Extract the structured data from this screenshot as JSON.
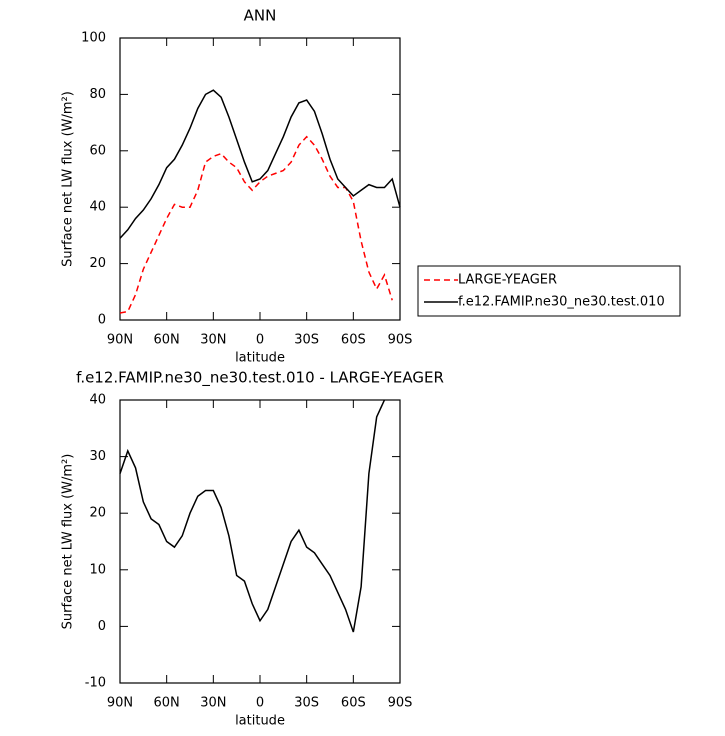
{
  "chart_data": [
    {
      "type": "line",
      "title": "ANN",
      "xlabel": "latitude",
      "ylabel": "Surface net LW flux (W/m²)",
      "x": [
        90,
        85,
        80,
        75,
        70,
        65,
        60,
        55,
        50,
        45,
        40,
        35,
        30,
        25,
        20,
        15,
        10,
        5,
        0,
        -5,
        -10,
        -15,
        -20,
        -25,
        -30,
        -35,
        -40,
        -45,
        -50,
        -55,
        -60,
        -65,
        -70,
        -75,
        -80,
        -85,
        -90
      ],
      "series": [
        {
          "name": "LARGE-YEAGER",
          "color": "#ff0000",
          "dash": true,
          "values": [
            2.5,
            3,
            9,
            18,
            24,
            30,
            36,
            41,
            40,
            40,
            46,
            56,
            58,
            59,
            56,
            54,
            49,
            46,
            49,
            51,
            52,
            53,
            56,
            62,
            65,
            62,
            57,
            51,
            47,
            47,
            42,
            28,
            17,
            11,
            16,
            7,
            null
          ]
        },
        {
          "name": "f.e12.FAMIP.ne30_ne30.test.010",
          "color": "#000000",
          "dash": false,
          "values": [
            29,
            32,
            36,
            39,
            43,
            48,
            54,
            57,
            62,
            68,
            75,
            80,
            81.5,
            79,
            72,
            64,
            56,
            49,
            50,
            53,
            59,
            65,
            72,
            77,
            78,
            74,
            66,
            57,
            50,
            47,
            44,
            46,
            48,
            47,
            47,
            50,
            40
          ]
        }
      ],
      "xlim": [
        90,
        -90
      ],
      "xticks": [
        {
          "value": 90,
          "label": "90N"
        },
        {
          "value": 60,
          "label": "60N"
        },
        {
          "value": 30,
          "label": "30N"
        },
        0,
        {
          "value": -30,
          "label": "30S"
        },
        {
          "value": -60,
          "label": "60S"
        },
        {
          "value": -90,
          "label": "90S"
        }
      ],
      "ylim": [
        0,
        100
      ],
      "yticks": [
        0,
        20,
        40,
        60,
        80,
        100
      ],
      "legend": "right"
    },
    {
      "type": "line",
      "title": "f.e12.FAMIP.ne30_ne30.test.010 - LARGE-YEAGER",
      "xlabel": "latitude",
      "ylabel": "Surface net LW flux (W/m²)",
      "x": [
        90,
        85,
        80,
        75,
        70,
        65,
        60,
        55,
        50,
        45,
        40,
        35,
        30,
        25,
        20,
        15,
        10,
        5,
        0,
        -5,
        -10,
        -15,
        -20,
        -25,
        -30,
        -35,
        -40,
        -45,
        -50,
        -55,
        -60,
        -65,
        -70,
        -75,
        -80,
        -85,
        -90
      ],
      "series": [
        {
          "color": "#000000",
          "dash": false,
          "values": [
            27,
            31,
            28,
            22,
            19,
            18,
            15,
            14,
            16,
            20,
            23,
            24,
            24,
            21,
            16,
            9,
            8,
            4,
            1,
            3,
            7,
            11,
            15,
            17,
            14,
            13,
            11,
            9,
            6,
            3,
            -1,
            7,
            27,
            37,
            40,
            null,
            null
          ]
        }
      ],
      "xlim": [
        90,
        -90
      ],
      "xticks": [
        {
          "value": 90,
          "label": "90N"
        },
        {
          "value": 60,
          "label": "60N"
        },
        {
          "value": 30,
          "label": "30N"
        },
        0,
        {
          "value": -30,
          "label": "30S"
        },
        {
          "value": -60,
          "label": "60S"
        },
        {
          "value": -90,
          "label": "90S"
        }
      ],
      "ylim": [
        -10,
        40
      ],
      "yticks": [
        -10,
        0,
        10,
        20,
        30,
        40
      ]
    }
  ]
}
